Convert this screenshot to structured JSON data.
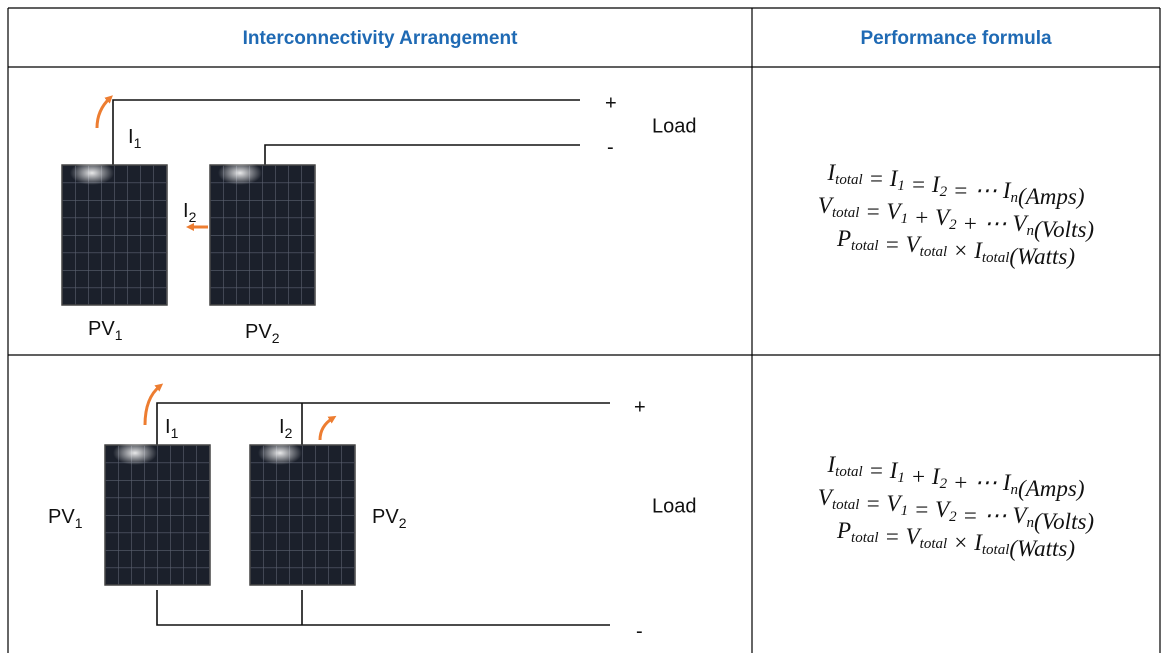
{
  "header": {
    "arrangement": "Interconnectivity Arrangement",
    "formula": "Performance formula"
  },
  "rows": [
    {
      "diagram": {
        "currents": [
          {
            "base": "I",
            "sub": "1"
          },
          {
            "base": "I",
            "sub": "2"
          }
        ],
        "panels": [
          {
            "base": "PV",
            "sub": "1"
          },
          {
            "base": "PV",
            "sub": "2"
          }
        ],
        "load": "Load",
        "plus": "+",
        "minus": "-"
      },
      "formulas": [
        [
          {
            "base": "I",
            "sub": "total"
          },
          " = ",
          {
            "base": "I",
            "sub": "1"
          },
          " = ",
          {
            "base": "I",
            "sub": "2"
          },
          " = ⋯ ",
          {
            "base": "I",
            "sub": "n"
          },
          "(Amps)"
        ],
        [
          {
            "base": "V",
            "sub": "total"
          },
          " = ",
          {
            "base": "V",
            "sub": "1"
          },
          " + ",
          {
            "base": "V",
            "sub": "2"
          },
          " + ⋯ ",
          {
            "base": "V",
            "sub": "n"
          },
          "(Volts)"
        ],
        [
          {
            "base": "P",
            "sub": "total"
          },
          " = ",
          {
            "base": "V",
            "sub": "total"
          },
          " × ",
          {
            "base": "I",
            "sub": "total"
          },
          "(Watts)"
        ]
      ]
    },
    {
      "diagram": {
        "currents": [
          {
            "base": "I",
            "sub": "1"
          },
          {
            "base": "I",
            "sub": "2"
          }
        ],
        "panels": [
          {
            "base": "PV",
            "sub": "1"
          },
          {
            "base": "PV",
            "sub": "2"
          }
        ],
        "load": "Load",
        "plus": "+",
        "minus": "-"
      },
      "formulas": [
        [
          {
            "base": "I",
            "sub": "total"
          },
          " = ",
          {
            "base": "I",
            "sub": "1"
          },
          " + ",
          {
            "base": "I",
            "sub": "2"
          },
          " + ⋯ ",
          {
            "base": "I",
            "sub": "n"
          },
          "(Amps)"
        ],
        [
          {
            "base": "V",
            "sub": "total"
          },
          " = ",
          {
            "base": "V",
            "sub": "1"
          },
          " = ",
          {
            "base": "V",
            "sub": "2"
          },
          " = ⋯ ",
          {
            "base": "V",
            "sub": "n"
          },
          "(Volts)"
        ],
        [
          {
            "base": "P",
            "sub": "total"
          },
          " = ",
          {
            "base": "V",
            "sub": "total"
          },
          " × ",
          {
            "base": "I",
            "sub": "total"
          },
          "(Watts)"
        ]
      ]
    }
  ]
}
